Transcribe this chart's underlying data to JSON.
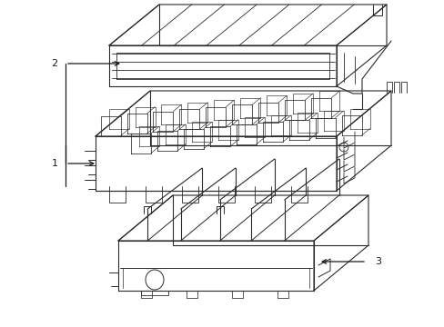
{
  "background_color": "#ffffff",
  "line_color": "#2a2a2a",
  "line_width": 0.8,
  "fig_width": 4.89,
  "fig_height": 3.6,
  "dpi": 100,
  "label1": "1",
  "label2": "2",
  "label3": "3"
}
